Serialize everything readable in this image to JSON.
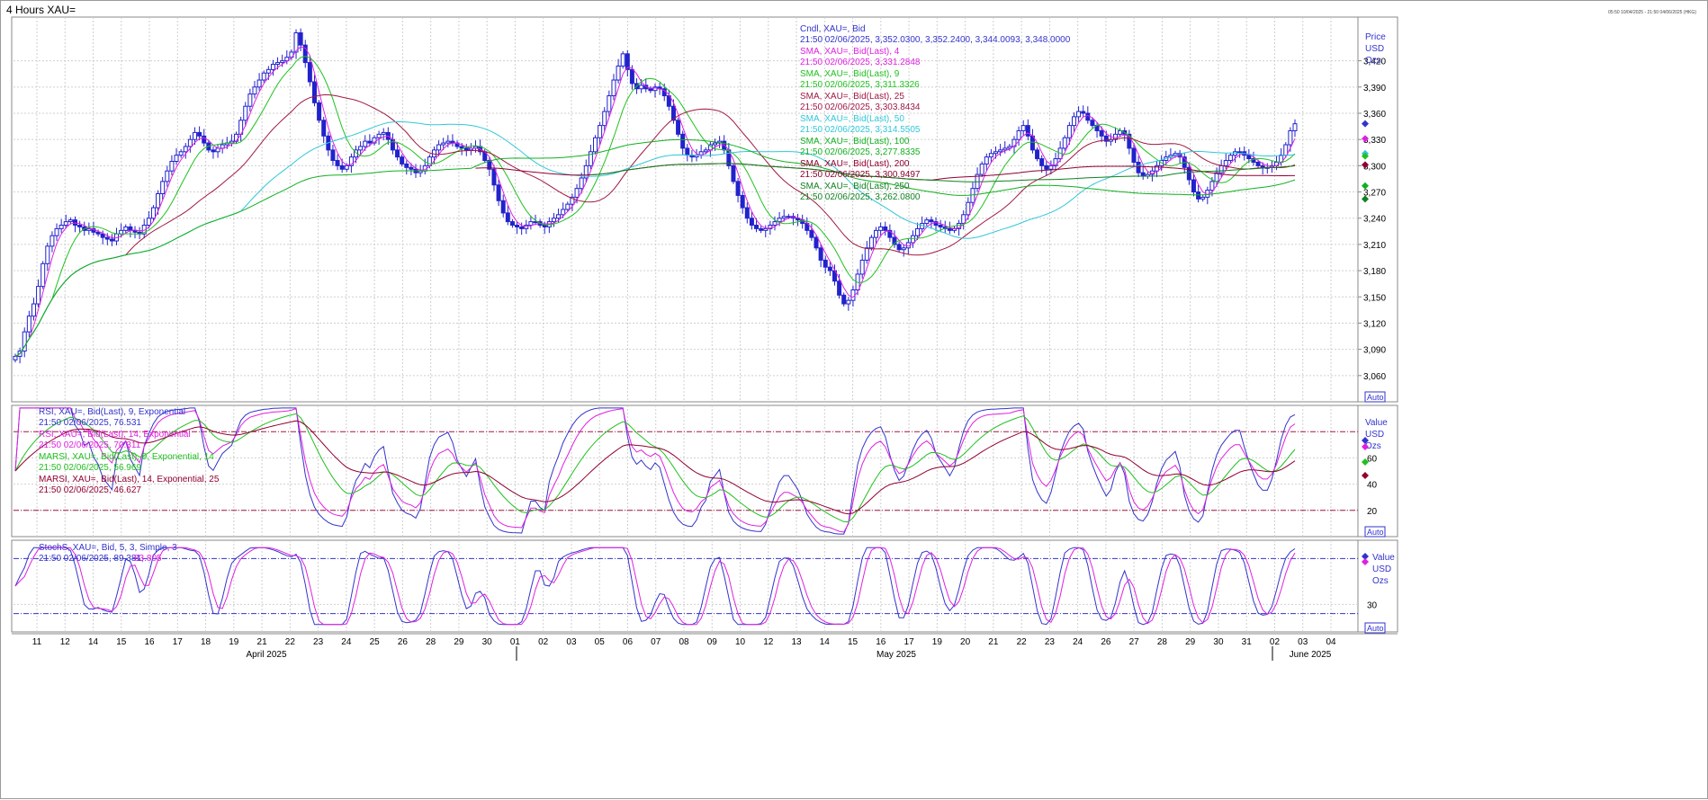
{
  "window": {
    "title": "4 Hours XAU=",
    "range_text": "05:50 10/04/2025 - 21:50 04/06/2025 (HKG)"
  },
  "chart_data": [
    {
      "type": "candlestick",
      "name": "price-panel",
      "axis_title": [
        "Price",
        "USD",
        "Ozs"
      ],
      "yticks": [
        3060,
        3090,
        3120,
        3150,
        3180,
        3210,
        3240,
        3270,
        3300,
        3330,
        3360,
        3390,
        3420
      ],
      "ylim": [
        3030,
        3470
      ],
      "auto_label": "Auto",
      "grid": true,
      "legend": [
        {
          "title": "Cndl, XAU=, Bid",
          "value": "21:50 02/06/2025, 3,352.0300, 3,352.2400, 3,344.0093, 3,348.0000",
          "color": "#3333cc"
        },
        {
          "title": "SMA, XAU=, Bid(Last),  4",
          "value": "21:50 02/06/2025, 3,331.2848",
          "color": "#e020e0"
        },
        {
          "title": "SMA, XAU=, Bid(Last),  9",
          "value": "21:50 02/06/2025, 3,311.3326",
          "color": "#20c020"
        },
        {
          "title": "SMA, XAU=, Bid(Last),  25",
          "value": "21:50 02/06/2025, 3,303.8434",
          "color": "#a01840"
        },
        {
          "title": "SMA, XAU=, Bid(Last),  50",
          "value": "21:50 02/06/2025, 3,314.5505",
          "color": "#30c8d8"
        },
        {
          "title": "SMA, XAU=, Bid(Last),  100",
          "value": "21:50 02/06/2025, 3,277.8335",
          "color": "#10b020"
        },
        {
          "title": "SMA, XAU=, Bid(Last),  200",
          "value": "21:50 02/06/2025, 3,300.9497",
          "color": "#900030"
        },
        {
          "title": "SMA, XAU=, Bid(Last),  250",
          "value": "21:50 02/06/2025, 3,262.0800",
          "color": "#108020"
        }
      ],
      "close": [
        3082,
        3088,
        3110,
        3128,
        3142,
        3162,
        3188,
        3208,
        3220,
        3228,
        3232,
        3236,
        3238,
        3232,
        3230,
        3226,
        3228,
        3224,
        3222,
        3218,
        3216,
        3214,
        3222,
        3226,
        3230,
        3226,
        3224,
        3222,
        3232,
        3240,
        3252,
        3268,
        3282,
        3294,
        3305,
        3312,
        3316,
        3322,
        3330,
        3338,
        3334,
        3326,
        3318,
        3316,
        3320,
        3324,
        3326,
        3328,
        3336,
        3352,
        3368,
        3382,
        3390,
        3398,
        3406,
        3410,
        3416,
        3418,
        3420,
        3424,
        3430,
        3452,
        3438,
        3418,
        3396,
        3372,
        3352,
        3334,
        3318,
        3306,
        3300,
        3296,
        3300,
        3310,
        3318,
        3322,
        3328,
        3326,
        3332,
        3336,
        3338,
        3330,
        3318,
        3310,
        3302,
        3298,
        3296,
        3292,
        3294,
        3300,
        3310,
        3318,
        3324,
        3326,
        3328,
        3326,
        3322,
        3320,
        3318,
        3320,
        3322,
        3316,
        3306,
        3296,
        3278,
        3260,
        3246,
        3236,
        3232,
        3230,
        3228,
        3232,
        3236,
        3236,
        3232,
        3230,
        3236,
        3240,
        3244,
        3250,
        3256,
        3264,
        3274,
        3286,
        3300,
        3316,
        3332,
        3346,
        3362,
        3380,
        3398,
        3414,
        3428,
        3410,
        3394,
        3388,
        3392,
        3388,
        3386,
        3390,
        3388,
        3380,
        3368,
        3352,
        3336,
        3320,
        3312,
        3310,
        3312,
        3316,
        3318,
        3324,
        3326,
        3328,
        3318,
        3300,
        3282,
        3266,
        3252,
        3240,
        3232,
        3228,
        3226,
        3228,
        3232,
        3236,
        3240,
        3242,
        3242,
        3240,
        3238,
        3234,
        3226,
        3218,
        3206,
        3192,
        3184,
        3180,
        3168,
        3152,
        3142,
        3146,
        3158,
        3176,
        3192,
        3206,
        3218,
        3226,
        3230,
        3226,
        3218,
        3210,
        3204,
        3206,
        3212,
        3220,
        3228,
        3234,
        3238,
        3236,
        3232,
        3230,
        3228,
        3226,
        3228,
        3234,
        3244,
        3258,
        3274,
        3290,
        3302,
        3310,
        3314,
        3316,
        3318,
        3320,
        3322,
        3330,
        3340,
        3346,
        3334,
        3318,
        3308,
        3300,
        3296,
        3300,
        3308,
        3320,
        3332,
        3346,
        3356,
        3362,
        3360,
        3352,
        3346,
        3340,
        3334,
        3328,
        3330,
        3336,
        3340,
        3336,
        3320,
        3304,
        3292,
        3288,
        3290,
        3294,
        3300,
        3306,
        3310,
        3312,
        3314,
        3310,
        3298,
        3284,
        3270,
        3262,
        3264,
        3272,
        3282,
        3292,
        3300,
        3306,
        3312,
        3316,
        3316,
        3312,
        3308,
        3304,
        3300,
        3298,
        3298,
        3300,
        3304,
        3312,
        3324,
        3340,
        3348
      ],
      "sma": [
        {
          "period": 4,
          "color": "#e020e0"
        },
        {
          "period": 9,
          "color": "#20c020"
        },
        {
          "period": 25,
          "color": "#a01840"
        },
        {
          "period": 50,
          "color": "#30c8d8"
        },
        {
          "period": 100,
          "color": "#10b020"
        },
        {
          "period": 200,
          "color": "#900030"
        },
        {
          "period": 250,
          "color": "#108020"
        }
      ],
      "markers": [
        {
          "value": 3348,
          "color": "#3333cc",
          "shape": "diamond"
        },
        {
          "value": 3331,
          "color": "#e020e0",
          "shape": "diamond"
        },
        {
          "value": 3314,
          "color": "#30c8d8",
          "shape": "diamond"
        },
        {
          "value": 3311,
          "color": "#20c020",
          "shape": "diamond"
        },
        {
          "value": 3301,
          "color": "#900030",
          "shape": "diamond"
        },
        {
          "value": 3277,
          "color": "#10b020",
          "shape": "diamond"
        },
        {
          "value": 3262,
          "color": "#108020",
          "shape": "diamond"
        }
      ]
    },
    {
      "type": "line",
      "name": "rsi-panel",
      "axis_title": [
        "Value",
        "USD",
        "Ozs"
      ],
      "yticks": [
        20,
        40,
        60
      ],
      "ylim": [
        0,
        100
      ],
      "hlines": [
        20,
        80
      ],
      "auto_label": "Auto",
      "legend": [
        {
          "title": "RSI, XAU=, Bid(Last),  9, Exponential",
          "value": "21:50 02/06/2025, 76.531",
          "color": "#3333cc"
        },
        {
          "title": "RSI, XAU=, Bid(Last),  14, Exponential",
          "value": "21:50 02/06/2025, 70.311",
          "color": "#e020e0"
        },
        {
          "title": "MARSI, XAU=, Bid(Last),  9, Exponential, 14",
          "value": "21:50 02/06/2025, 56.969",
          "color": "#20c020"
        },
        {
          "title": "MARSI, XAU=, Bid(Last),  14, Exponential, 25",
          "value": "21:50 02/06/2025, 46.627",
          "color": "#900030"
        }
      ]
    },
    {
      "type": "line",
      "name": "stoch-panel",
      "axis_title": [
        "Value",
        "USD",
        "Ozs"
      ],
      "yticks": [
        30
      ],
      "ylim": [
        0,
        100
      ],
      "hlines": [
        20,
        80
      ],
      "auto_label": "Auto",
      "legend": [
        {
          "title": "StochS, XAU=, Bid,  5, 3, Simple, 3",
          "value": "21:50 02/06/2025, 89.381,",
          "value2": "83.805",
          "color": "#3333cc",
          "color2": "#e020e0"
        }
      ]
    }
  ],
  "x_axis": {
    "ticks": [
      "11",
      "12",
      "14",
      "15",
      "16",
      "17",
      "18",
      "19",
      "21",
      "22",
      "23",
      "24",
      "25",
      "26",
      "28",
      "29",
      "30",
      "01",
      "02",
      "03",
      "05",
      "06",
      "07",
      "08",
      "09",
      "10",
      "12",
      "13",
      "14",
      "15",
      "16",
      "17",
      "19",
      "20",
      "21",
      "22",
      "23",
      "24",
      "26",
      "27",
      "28",
      "29",
      "30",
      "31",
      "02",
      "03",
      "04"
    ],
    "months": [
      "April 2025",
      "May 2025",
      "June 2025"
    ]
  }
}
